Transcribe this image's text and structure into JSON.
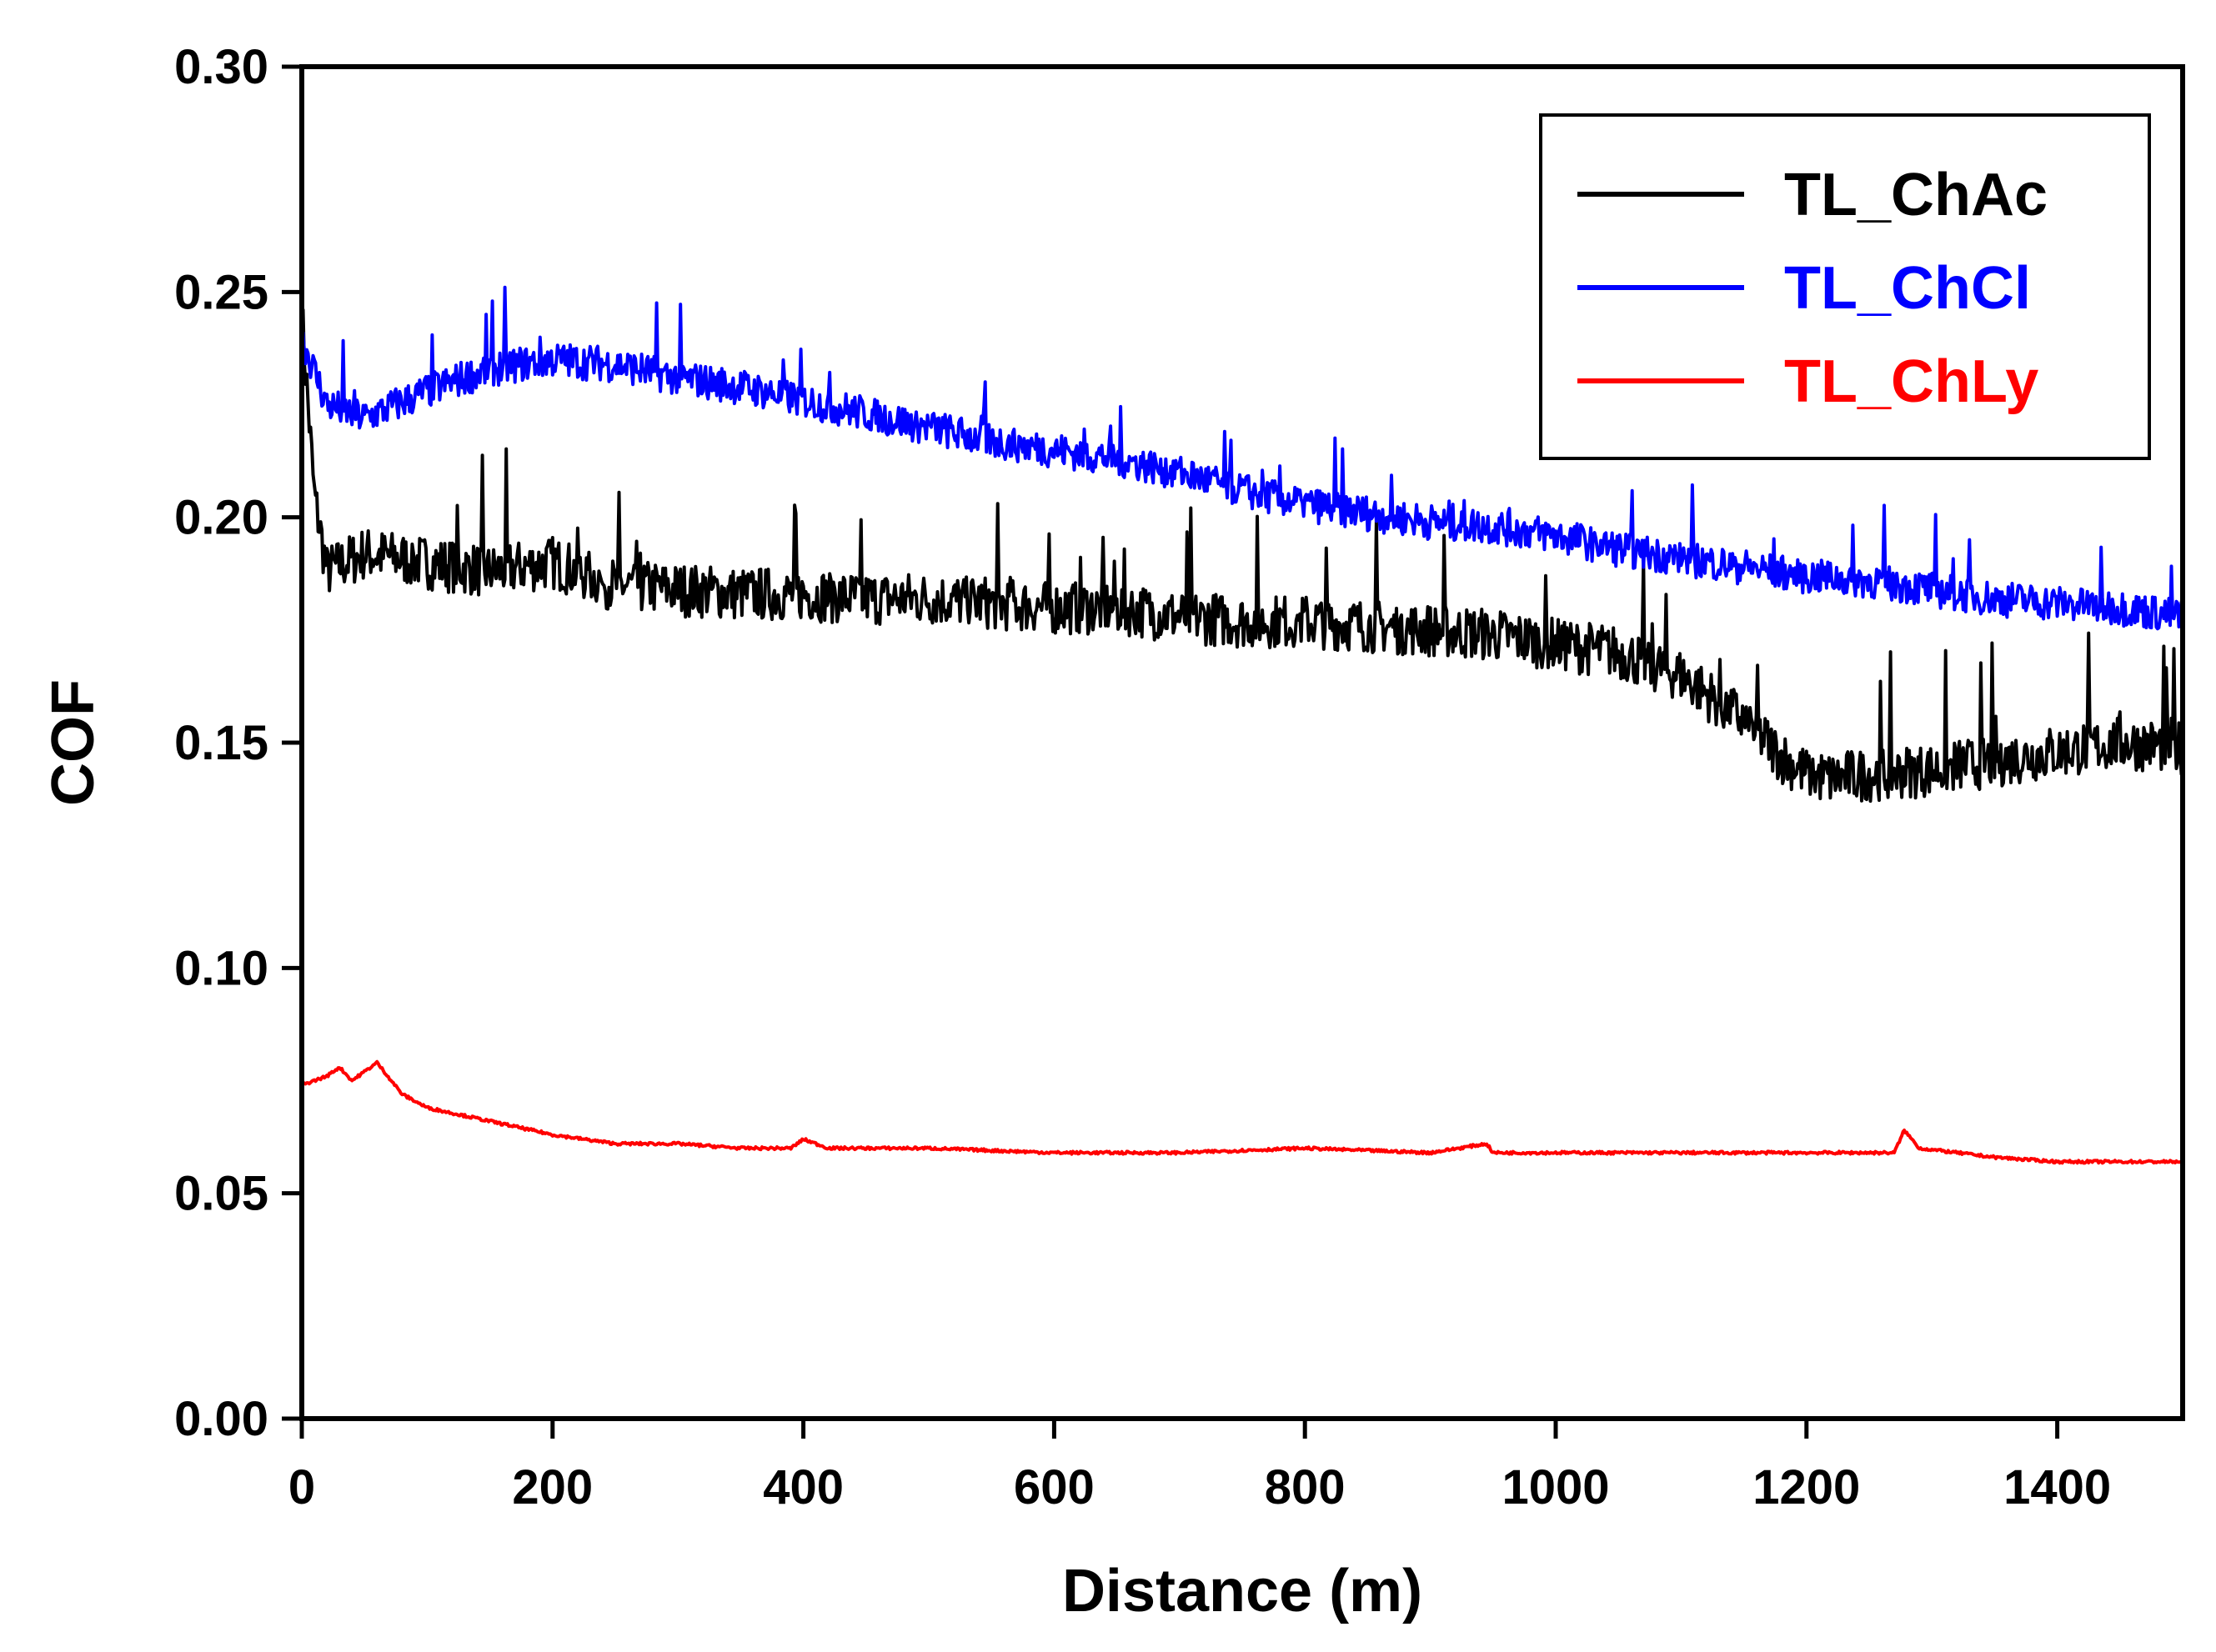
{
  "chart_data": {
    "type": "line",
    "title": "",
    "xlabel": "Distance (m)",
    "ylabel": "COF",
    "xlim": [
      0,
      1500
    ],
    "ylim": [
      0.0,
      0.3
    ],
    "x_ticks": [
      0,
      200,
      400,
      600,
      800,
      1000,
      1200,
      1400
    ],
    "x_tick_labels": [
      "0",
      "200",
      "400",
      "600",
      "800",
      "1000",
      "1200",
      "1400"
    ],
    "y_ticks": [
      0.0,
      0.05,
      0.1,
      0.15,
      0.2,
      0.25,
      0.3
    ],
    "y_tick_labels": [
      "0.00",
      "0.05",
      "0.10",
      "0.15",
      "0.20",
      "0.25",
      "0.30"
    ],
    "grid": false,
    "legend_position": "top-right",
    "series": [
      {
        "name": "TL_ChAc",
        "color": "#000000",
        "noise": 0.012,
        "x": [
          0,
          10,
          20,
          50,
          100,
          150,
          200,
          250,
          300,
          350,
          400,
          450,
          500,
          550,
          600,
          650,
          700,
          750,
          800,
          850,
          900,
          950,
          1000,
          1050,
          1100,
          1150,
          1180,
          1200,
          1220,
          1250,
          1300,
          1350,
          1400,
          1450,
          1500
        ],
        "y": [
          0.245,
          0.205,
          0.188,
          0.192,
          0.19,
          0.188,
          0.19,
          0.185,
          0.184,
          0.183,
          0.183,
          0.182,
          0.182,
          0.181,
          0.18,
          0.18,
          0.178,
          0.177,
          0.177,
          0.176,
          0.175,
          0.174,
          0.172,
          0.17,
          0.165,
          0.155,
          0.147,
          0.143,
          0.142,
          0.143,
          0.144,
          0.146,
          0.148,
          0.15,
          0.149
        ]
      },
      {
        "name": "TL_ChCl",
        "color": "#0000FF",
        "noise": 0.008,
        "x": [
          0,
          20,
          50,
          100,
          150,
          200,
          250,
          300,
          350,
          400,
          450,
          500,
          550,
          600,
          650,
          700,
          750,
          800,
          850,
          900,
          950,
          1000,
          1050,
          1100,
          1150,
          1200,
          1250,
          1300,
          1350,
          1400,
          1450,
          1500
        ],
        "y": [
          0.24,
          0.225,
          0.222,
          0.228,
          0.233,
          0.235,
          0.234,
          0.231,
          0.229,
          0.226,
          0.223,
          0.22,
          0.217,
          0.215,
          0.213,
          0.21,
          0.206,
          0.203,
          0.201,
          0.199,
          0.198,
          0.196,
          0.193,
          0.191,
          0.189,
          0.187,
          0.186,
          0.184,
          0.182,
          0.181,
          0.18,
          0.178
        ]
      },
      {
        "name": "TL_ChLy",
        "color": "#FF0000",
        "noise": 0.0006,
        "x": [
          0,
          20,
          30,
          40,
          50,
          60,
          80,
          100,
          150,
          200,
          250,
          300,
          350,
          390,
          400,
          420,
          500,
          600,
          700,
          800,
          900,
          945,
          950,
          1000,
          1100,
          1200,
          1270,
          1278,
          1290,
          1350,
          1400,
          1450,
          1500
        ],
        "y": [
          0.074,
          0.076,
          0.078,
          0.075,
          0.077,
          0.079,
          0.072,
          0.069,
          0.066,
          0.063,
          0.061,
          0.061,
          0.06,
          0.06,
          0.062,
          0.06,
          0.06,
          0.059,
          0.059,
          0.06,
          0.059,
          0.061,
          0.059,
          0.059,
          0.059,
          0.059,
          0.059,
          0.064,
          0.06,
          0.058,
          0.057,
          0.057,
          0.057
        ]
      }
    ]
  }
}
